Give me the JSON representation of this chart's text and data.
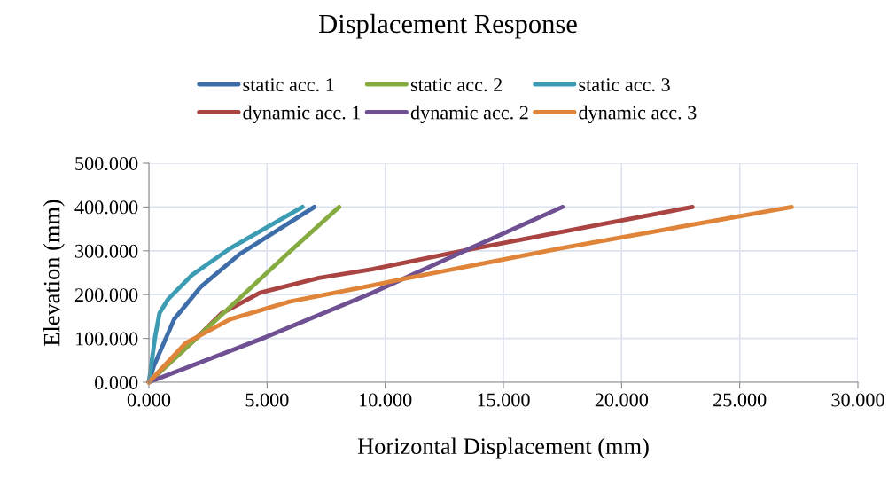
{
  "chart_data": {
    "type": "line",
    "title": "Displacement Response",
    "xlabel": "Horizontal Displacement (mm)",
    "ylabel": "Elevation (mm)",
    "xlim": [
      0,
      30
    ],
    "ylim": [
      0,
      500
    ],
    "xticks": [
      {
        "value": 0,
        "label": "0.000"
      },
      {
        "value": 5,
        "label": "5.000"
      },
      {
        "value": 10,
        "label": "10.000"
      },
      {
        "value": 15,
        "label": "15.000"
      },
      {
        "value": 20,
        "label": "20.000"
      },
      {
        "value": 25,
        "label": "25.000"
      },
      {
        "value": 30,
        "label": "30.000"
      }
    ],
    "yticks": [
      {
        "value": 0,
        "label": "0.000"
      },
      {
        "value": 100,
        "label": "100.000"
      },
      {
        "value": 200,
        "label": "200.000"
      },
      {
        "value": 300,
        "label": "300.000"
      },
      {
        "value": 400,
        "label": "400.000"
      },
      {
        "value": 500,
        "label": "500.000"
      }
    ],
    "grid": true,
    "legend": "top",
    "marker": "none",
    "line_style": "solid",
    "series": [
      {
        "name": "static acc. 1",
        "color": "#3e6eaa",
        "x": [
          0,
          0.2,
          1.07,
          2.2,
          3.83,
          7.0
        ],
        "values": [
          0,
          36,
          144,
          218,
          292,
          400
        ]
      },
      {
        "name": "dynamic acc. 1",
        "color": "#a94442",
        "x": [
          0,
          1.0,
          2.0,
          3.07,
          4.7,
          7.2,
          9.45,
          13.45,
          17.44,
          23.0
        ],
        "values": [
          0,
          50,
          100,
          157,
          204,
          238,
          258,
          302,
          343,
          400
        ]
      },
      {
        "name": "static acc. 2",
        "color": "#86ac41",
        "x": [
          0,
          2.0,
          4.0,
          6.0,
          8.05
        ],
        "values": [
          0,
          100,
          200,
          300,
          400
        ]
      },
      {
        "name": "dynamic acc. 2",
        "color": "#6f5193",
        "x": [
          0,
          4.95,
          9.45,
          13.45,
          17.5
        ],
        "values": [
          0,
          103,
          204,
          302,
          400
        ]
      },
      {
        "name": "static acc. 3",
        "color": "#3c9cb4",
        "x": [
          0,
          0.26,
          0.45,
          0.82,
          1.83,
          3.45,
          6.5
        ],
        "values": [
          0,
          103,
          158,
          190,
          245,
          306,
          400
        ]
      },
      {
        "name": "dynamic acc. 3",
        "color": "#e0843a",
        "x": [
          0,
          1.57,
          3.45,
          5.95,
          9.45,
          10.7,
          17.44,
          27.2
        ],
        "values": [
          0,
          90,
          144,
          184,
          221,
          235,
          306,
          400
        ]
      }
    ]
  }
}
